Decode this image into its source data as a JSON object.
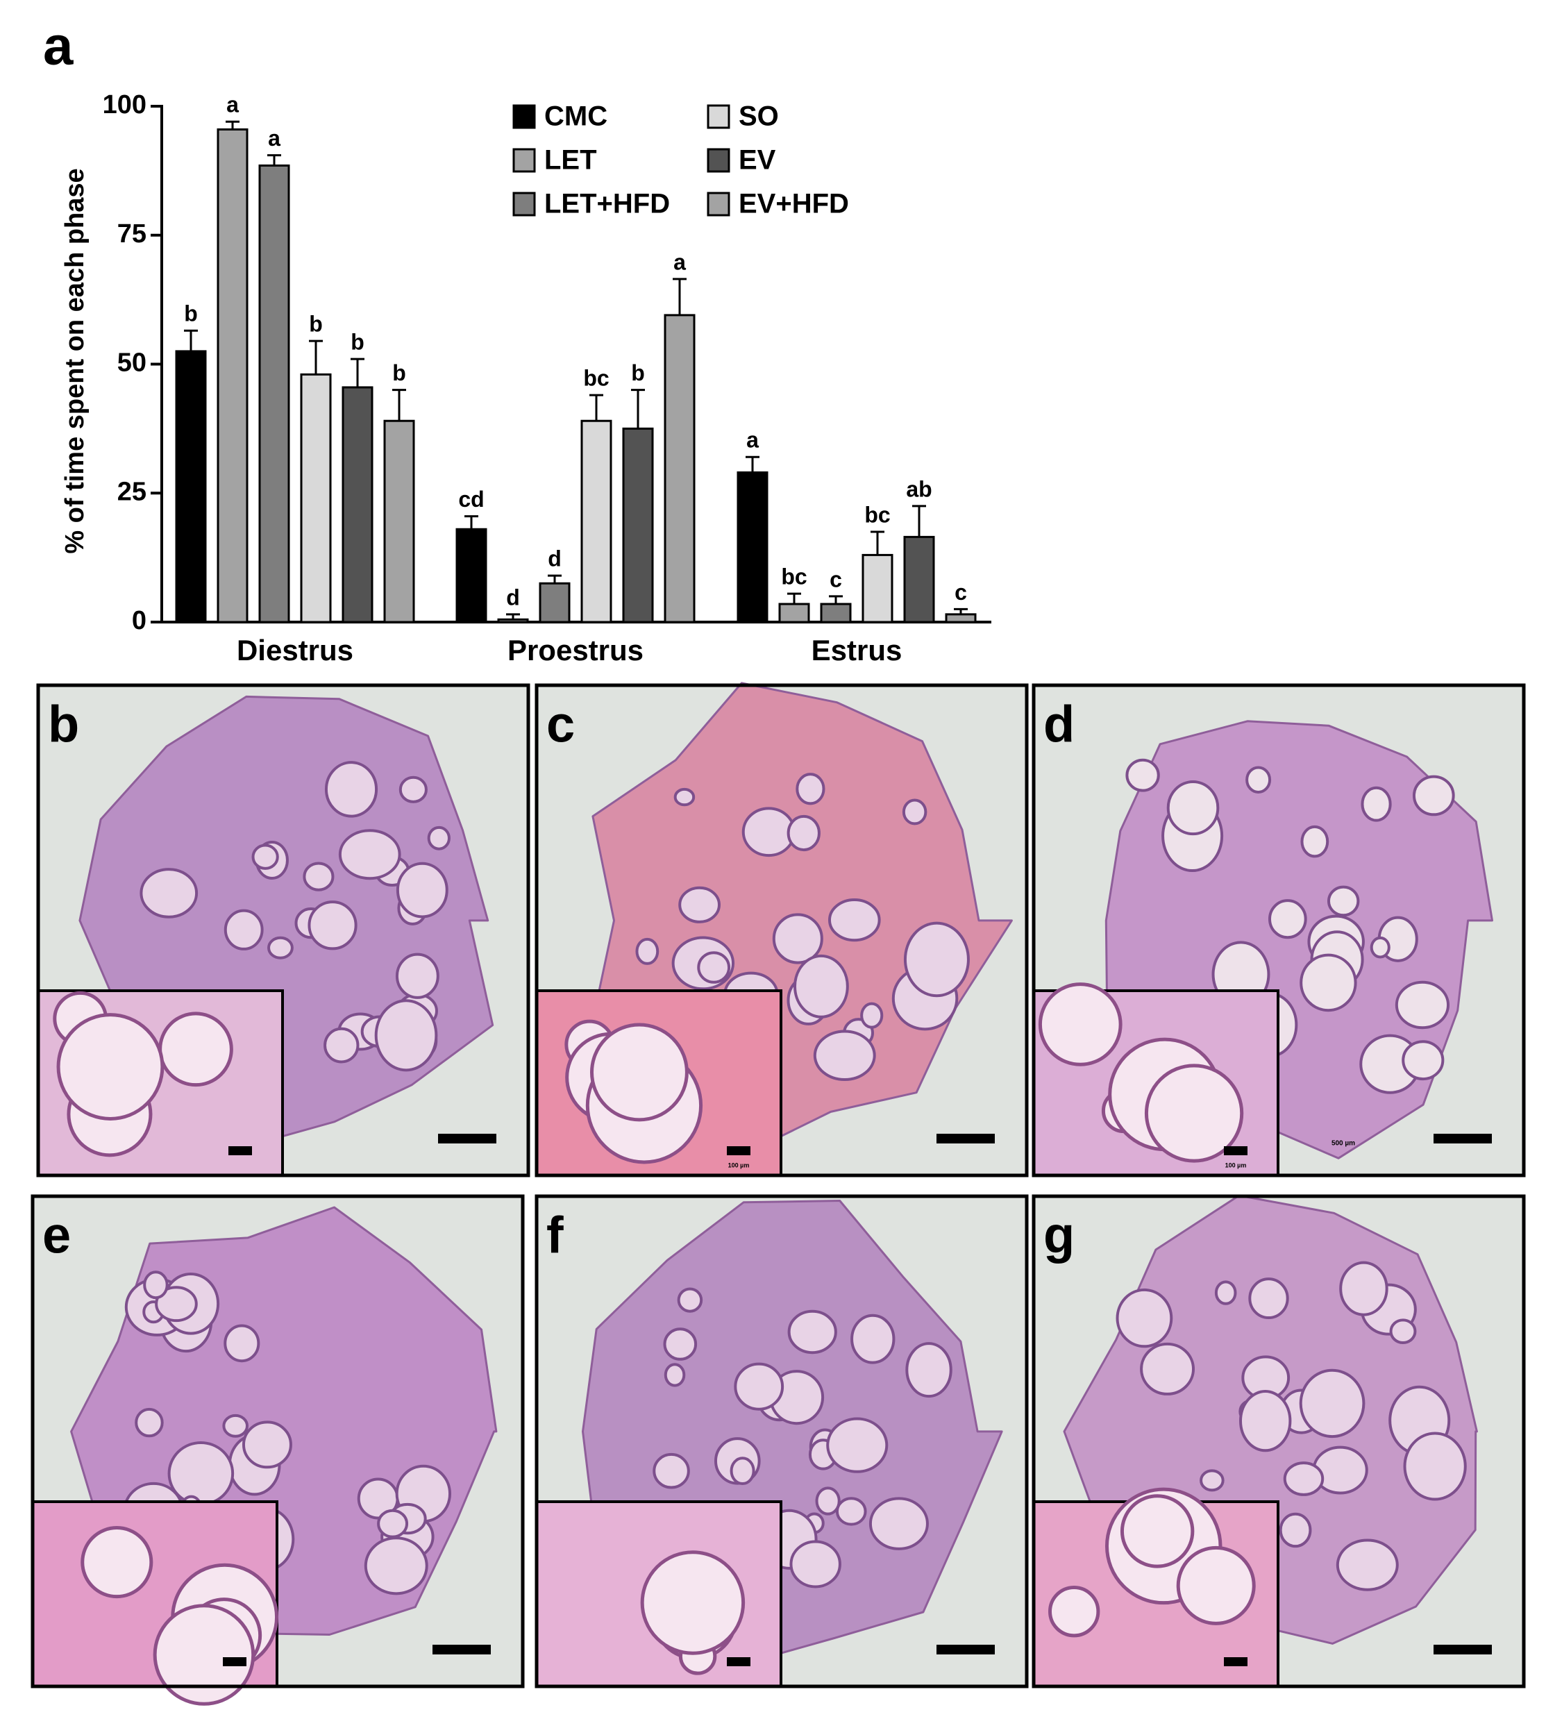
{
  "chart_data": {
    "type": "bar",
    "panel_label": "a",
    "y_label": "% of time spent on each phase",
    "categories": [
      "Diestrus",
      "Proestrus",
      "Estrus"
    ],
    "ylim": [
      0,
      100
    ],
    "yticks": [
      0,
      25,
      50,
      75,
      100
    ],
    "series": [
      {
        "name": "CMC",
        "color": "#000000",
        "values": [
          52.5,
          18,
          29
        ],
        "errors": [
          4,
          2.5,
          3
        ],
        "labels": [
          "b",
          "cd",
          "a"
        ]
      },
      {
        "name": "LET",
        "color": "#a3a3a3",
        "values": [
          95.5,
          0.5,
          3.5
        ],
        "errors": [
          1.5,
          1,
          2
        ],
        "labels": [
          "a",
          "d",
          "bc"
        ]
      },
      {
        "name": "LET+HFD",
        "color": "#7e7e7e",
        "values": [
          88.5,
          7.5,
          3.5
        ],
        "errors": [
          2,
          1.5,
          1.5
        ],
        "labels": [
          "a",
          "d",
          "c"
        ]
      },
      {
        "name": "SO",
        "color": "#d9d9d9",
        "values": [
          48,
          39,
          13
        ],
        "errors": [
          6.5,
          5,
          4.5
        ],
        "labels": [
          "b",
          "bc",
          "bc"
        ]
      },
      {
        "name": "EV",
        "color": "#535353",
        "values": [
          45.5,
          37.5,
          16.5
        ],
        "errors": [
          5.5,
          7.5,
          6
        ],
        "labels": [
          "b",
          "b",
          "ab"
        ]
      },
      {
        "name": "EV+HFD",
        "color": "#a3a3a3",
        "values": [
          39,
          59.5,
          1.5
        ],
        "errors": [
          6,
          7,
          1
        ],
        "labels": [
          "b",
          "a",
          "c"
        ]
      }
    ]
  },
  "panels": [
    {
      "label": "b"
    },
    {
      "label": "c",
      "inset_scale": "100 µm"
    },
    {
      "label": "d",
      "scale": "500 µm",
      "inset_scale": "100 µm"
    },
    {
      "label": "e"
    },
    {
      "label": "f"
    },
    {
      "label": "g"
    }
  ]
}
